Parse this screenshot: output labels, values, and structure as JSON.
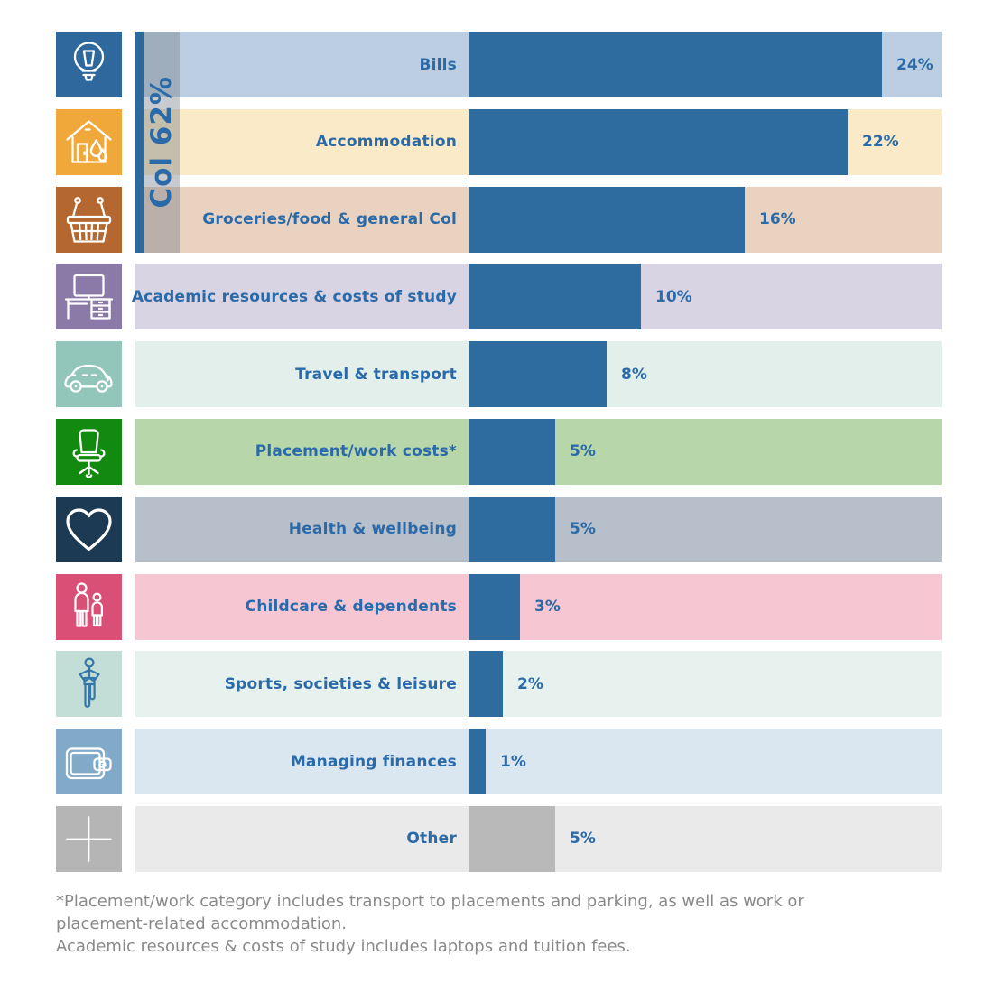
{
  "group": {
    "label": "Col 62%",
    "strip_color": "#2e689c",
    "band_color": "rgba(115,125,135,0.4)",
    "text_color": "#2b6aa9"
  },
  "rows": [
    {
      "label": "Bills",
      "pct_label": "24%",
      "value": 24,
      "icon": "lightbulb-icon",
      "icon_bg": "#2e689c",
      "icon_stroke": "#ffffff",
      "row_bg": "#bccfe2",
      "bar_color": "#2e6b9e"
    },
    {
      "label": "Accommodation",
      "pct_label": "22%",
      "value": 22,
      "icon": "house-icon",
      "icon_bg": "#f1a83b",
      "icon_stroke": "#ffffff",
      "row_bg": "#faeac7",
      "bar_color": "#2e6b9e"
    },
    {
      "label": "Groceries/food & general Col",
      "pct_label": "16%",
      "value": 16,
      "icon": "shopping-basket-icon",
      "icon_bg": "#b4682f",
      "icon_stroke": "#ffffff",
      "row_bg": "#e9d3c0",
      "bar_color": "#2e6b9e"
    },
    {
      "label": "Academic resources & costs of study",
      "pct_label": "10%",
      "value": 10,
      "icon": "desk-computer-icon",
      "icon_bg": "#8b79a7",
      "icon_stroke": "#ffffff",
      "row_bg": "#d8d4e3",
      "bar_color": "#2e6b9e"
    },
    {
      "label": "Travel & transport",
      "pct_label": "8%",
      "value": 8,
      "icon": "car-icon",
      "icon_bg": "#92c6bb",
      "icon_stroke": "#ffffff",
      "row_bg": "#e2efeb",
      "bar_color": "#2e6b9e"
    },
    {
      "label": "Placement/work costs*",
      "pct_label": "5%",
      "value": 5,
      "icon": "office-chair-icon",
      "icon_bg": "#12890f",
      "icon_stroke": "#ffffff",
      "row_bg": "#b7d7ab",
      "bar_color": "#2e6b9e"
    },
    {
      "label": "Health & wellbeing",
      "pct_label": "5%",
      "value": 5,
      "icon": "heart-icon",
      "icon_bg": "#1d3a55",
      "icon_stroke": "#ffffff",
      "row_bg": "#b7bfcb",
      "bar_color": "#2e6b9e"
    },
    {
      "label": "Childcare & dependents",
      "pct_label": "3%",
      "value": 3,
      "icon": "parent-child-icon",
      "icon_bg": "#d94f76",
      "icon_stroke": "#ffffff",
      "row_bg": "#f7c6d3",
      "bar_color": "#2e6b9e"
    },
    {
      "label": "Sports, societies & leisure",
      "pct_label": "2%",
      "value": 2,
      "icon": "exercising-person-icon",
      "icon_bg": "#c3ded6",
      "icon_stroke": "#3577a8",
      "row_bg": "#e7f1ee",
      "bar_color": "#2e6b9e"
    },
    {
      "label": "Managing finances",
      "pct_label": "1%",
      "value": 1,
      "icon": "wallet-icon",
      "icon_bg": "#80aac7",
      "icon_stroke": "#ffffff",
      "row_bg": "#dae6f0",
      "bar_color": "#2e6b9e"
    },
    {
      "label": "Other",
      "pct_label": "5%",
      "value": 5,
      "icon": "plus-icon",
      "icon_bg": "#b5b5b5",
      "icon_stroke": "#ffffff",
      "row_bg": "#eaeaea",
      "bar_color": "#b9b9b9"
    }
  ],
  "footnote": {
    "lines": [
      "*Placement/work category includes transport to placements and parking, as well as work or",
      "placement-related accommodation.",
      "Academic resources & costs of study includes laptops and tuition fees."
    ]
  },
  "chart_data": {
    "type": "bar",
    "orientation": "horizontal",
    "title": "",
    "categories": [
      "Bills",
      "Accommodation",
      "Groceries/food & general Col",
      "Academic resources & costs of study",
      "Travel & transport",
      "Placement/work costs*",
      "Health & wellbeing",
      "Childcare & dependents",
      "Sports, societies & leisure",
      "Managing finances",
      "Other"
    ],
    "values": [
      24,
      22,
      16,
      10,
      8,
      5,
      5,
      3,
      2,
      1,
      5
    ],
    "unit": "%",
    "xlim": [
      0,
      24
    ],
    "grid": false,
    "legend": "none",
    "bar_color": "#2e6b9e",
    "other_bar_color": "#b9b9b9",
    "group_annotation": {
      "label": "Col 62%",
      "applies_to": [
        "Bills",
        "Accommodation",
        "Groceries/food & general Col"
      ]
    }
  }
}
